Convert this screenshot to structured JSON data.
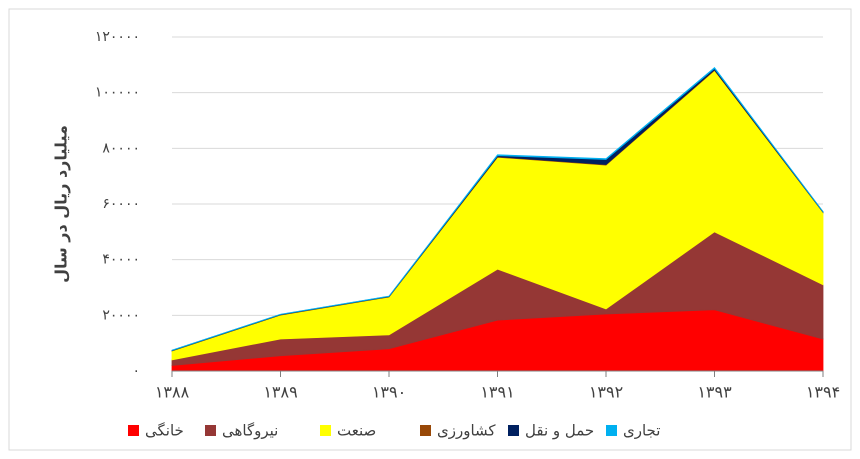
{
  "chart_data": {
    "type": "stacked_area",
    "y_label": "میلیارد ریال در سال",
    "categories": [
      "۱۳۸۸",
      "۱۳۸۹",
      "۱۳۹۰",
      "۱۳۹۱",
      "۱۳۹۲",
      "۱۳۹۳",
      "۱۳۹۴"
    ],
    "series": [
      {
        "name": "خانگی",
        "color": "#ff0000",
        "values": [
          2000,
          5500,
          8000,
          18300,
          20500,
          22000,
          11500
        ]
      },
      {
        "name": "نیروگاهی",
        "color": "#953735",
        "values": [
          2000,
          6000,
          5000,
          18300,
          1800,
          28000,
          19500
        ]
      },
      {
        "name": "صنعت",
        "color": "#ffff00",
        "values": [
          3200,
          8600,
          13600,
          40200,
          51700,
          58000,
          26000
        ]
      },
      {
        "name": "کشاورزی",
        "color": "#984807",
        "values": [
          100,
          100,
          100,
          200,
          200,
          200,
          100
        ]
      },
      {
        "name": "حمل و نقل",
        "color": "#002060",
        "values": [
          100,
          100,
          100,
          400,
          1800,
          500,
          100
        ]
      },
      {
        "name": "تجاری",
        "color": "#00b0f0",
        "values": [
          100,
          100,
          100,
          300,
          300,
          300,
          100
        ]
      }
    ],
    "ylim": [
      0,
      120000
    ],
    "yticks": [
      {
        "value": 0,
        "label": "۰"
      },
      {
        "value": 20000,
        "label": "۲۰۰۰۰"
      },
      {
        "value": 40000,
        "label": "۴۰۰۰۰"
      },
      {
        "value": 60000,
        "label": "۶۰۰۰۰"
      },
      {
        "value": 80000,
        "label": "۸۰۰۰۰"
      },
      {
        "value": 100000,
        "label": "۱۰۰۰۰۰"
      },
      {
        "value": 120000,
        "label": "۱۲۰۰۰۰"
      }
    ],
    "grid": true,
    "legend": "bottom"
  }
}
